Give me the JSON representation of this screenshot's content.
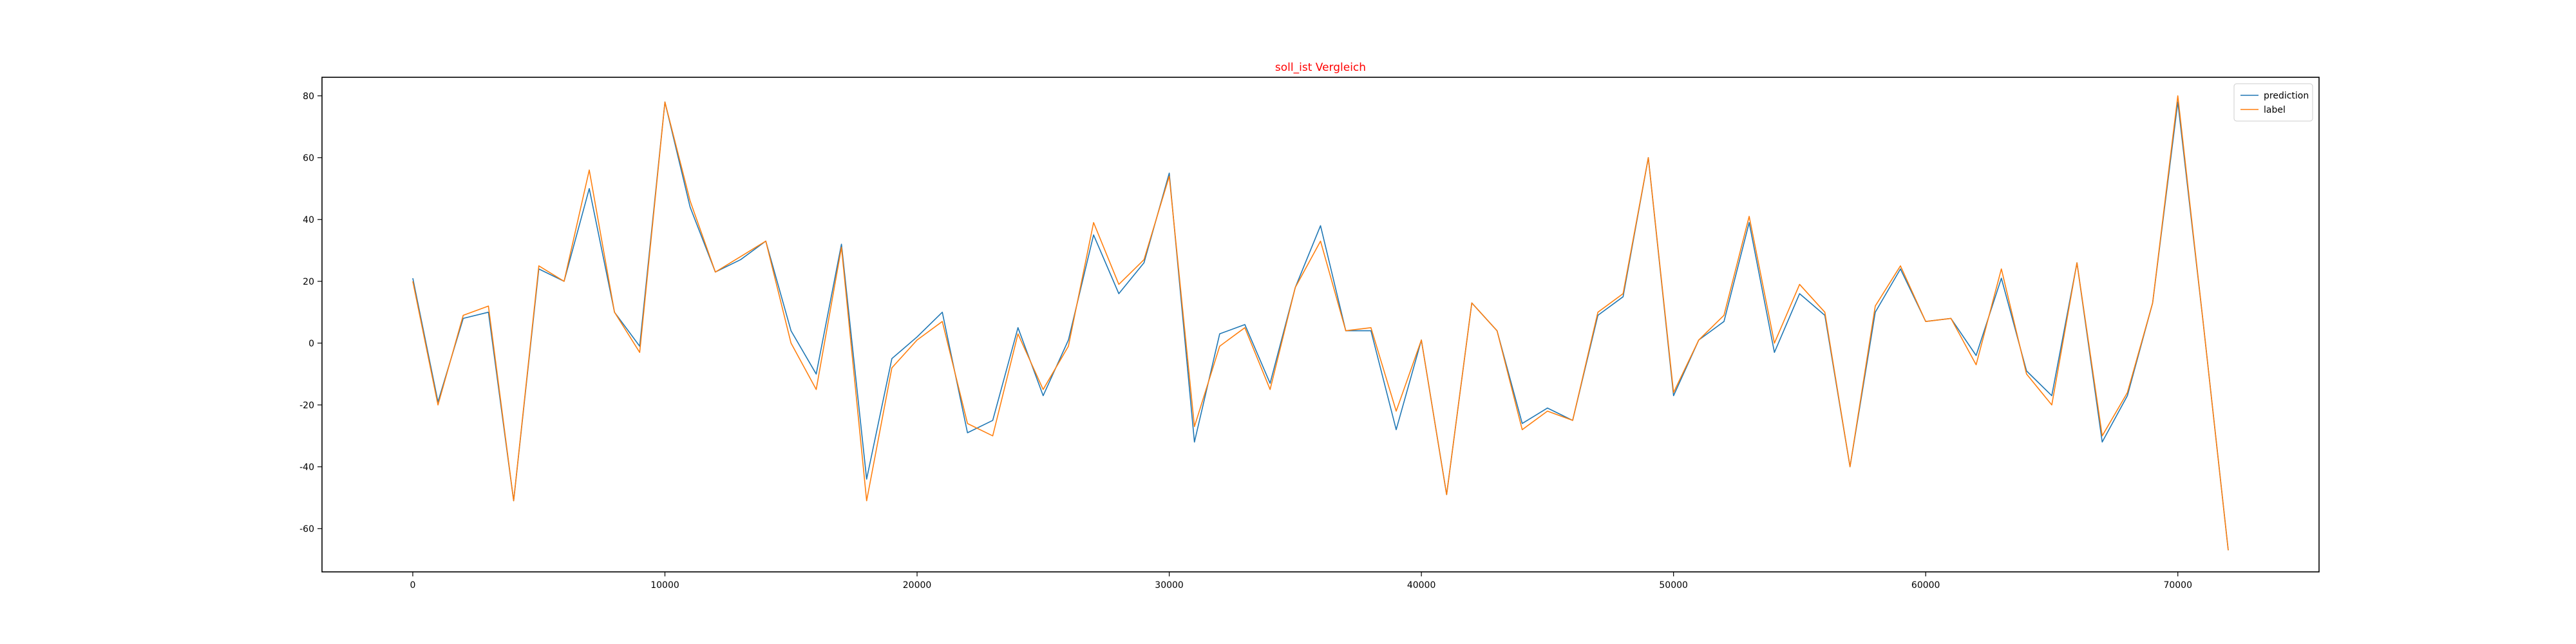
{
  "chart_data": {
    "type": "line",
    "title": "soll_ist Vergleich",
    "title_color": "#ff0000",
    "xlabel": "",
    "ylabel": "",
    "xlim": [
      -3600,
      75600
    ],
    "ylim": [
      -74,
      86
    ],
    "x_ticks": [
      0,
      10000,
      20000,
      30000,
      40000,
      50000,
      60000,
      70000
    ],
    "y_ticks": [
      -60,
      -40,
      -20,
      0,
      20,
      40,
      60,
      80
    ],
    "grid": false,
    "legend_position": "upper right",
    "x": [
      0,
      1000,
      2000,
      3000,
      4000,
      5000,
      6000,
      7000,
      8000,
      9000,
      10000,
      11000,
      12000,
      13000,
      14000,
      15000,
      16000,
      17000,
      18000,
      19000,
      20000,
      21000,
      22000,
      23000,
      24000,
      25000,
      26000,
      27000,
      28000,
      29000,
      30000,
      31000,
      32000,
      33000,
      34000,
      35000,
      36000,
      37000,
      38000,
      39000,
      40000,
      41000,
      42000,
      43000,
      44000,
      45000,
      46000,
      47000,
      48000,
      49000,
      50000,
      51000,
      52000,
      53000,
      54000,
      55000,
      56000,
      57000,
      58000,
      59000,
      60000,
      61000,
      62000,
      63000,
      64000,
      65000,
      66000,
      67000,
      68000,
      69000,
      70000,
      71000,
      72000
    ],
    "series": [
      {
        "name": "prediction",
        "color": "#1f77b4",
        "values": [
          21,
          -19,
          8,
          10,
          -51,
          24,
          20,
          50,
          10,
          -1,
          78,
          44,
          23,
          27,
          33,
          4,
          -10,
          32,
          -44,
          -5,
          2,
          10,
          -29,
          -25,
          5,
          -17,
          1,
          35,
          16,
          26,
          55,
          -32,
          3,
          6,
          -13,
          18,
          38,
          4,
          4,
          -28,
          1,
          -49,
          13,
          4,
          -26,
          -21,
          -25,
          9,
          15,
          60,
          -17,
          1,
          7,
          39,
          -3,
          16,
          9,
          -40,
          10,
          24,
          7,
          8,
          -4,
          21,
          -9,
          -17,
          26,
          -32,
          -17,
          13,
          78,
          7,
          -67
        ]
      },
      {
        "name": "label",
        "color": "#ff7f0e",
        "values": [
          20,
          -20,
          9,
          12,
          -51,
          25,
          20,
          56,
          10,
          -3,
          78,
          46,
          23,
          28,
          33,
          0,
          -15,
          31,
          -51,
          -8,
          1,
          7,
          -26,
          -30,
          3,
          -15,
          -1,
          39,
          19,
          27,
          54,
          -27,
          -1,
          5,
          -15,
          18,
          33,
          4,
          5,
          -22,
          1,
          -49,
          13,
          4,
          -28,
          -22,
          -25,
          10,
          16,
          60,
          -16,
          1,
          9,
          41,
          0,
          19,
          10,
          -40,
          12,
          25,
          7,
          8,
          -7,
          24,
          -10,
          -20,
          26,
          -30,
          -16,
          13,
          80,
          7,
          -67
        ]
      }
    ]
  }
}
